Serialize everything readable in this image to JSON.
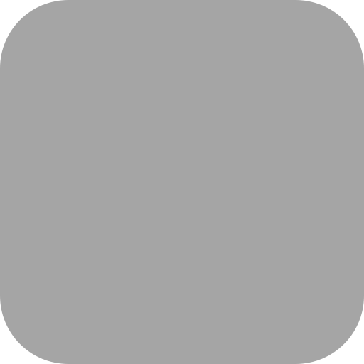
{
  "tile": {
    "color": "#a5a5a5",
    "icon": "blank-app-icon-placeholder"
  }
}
